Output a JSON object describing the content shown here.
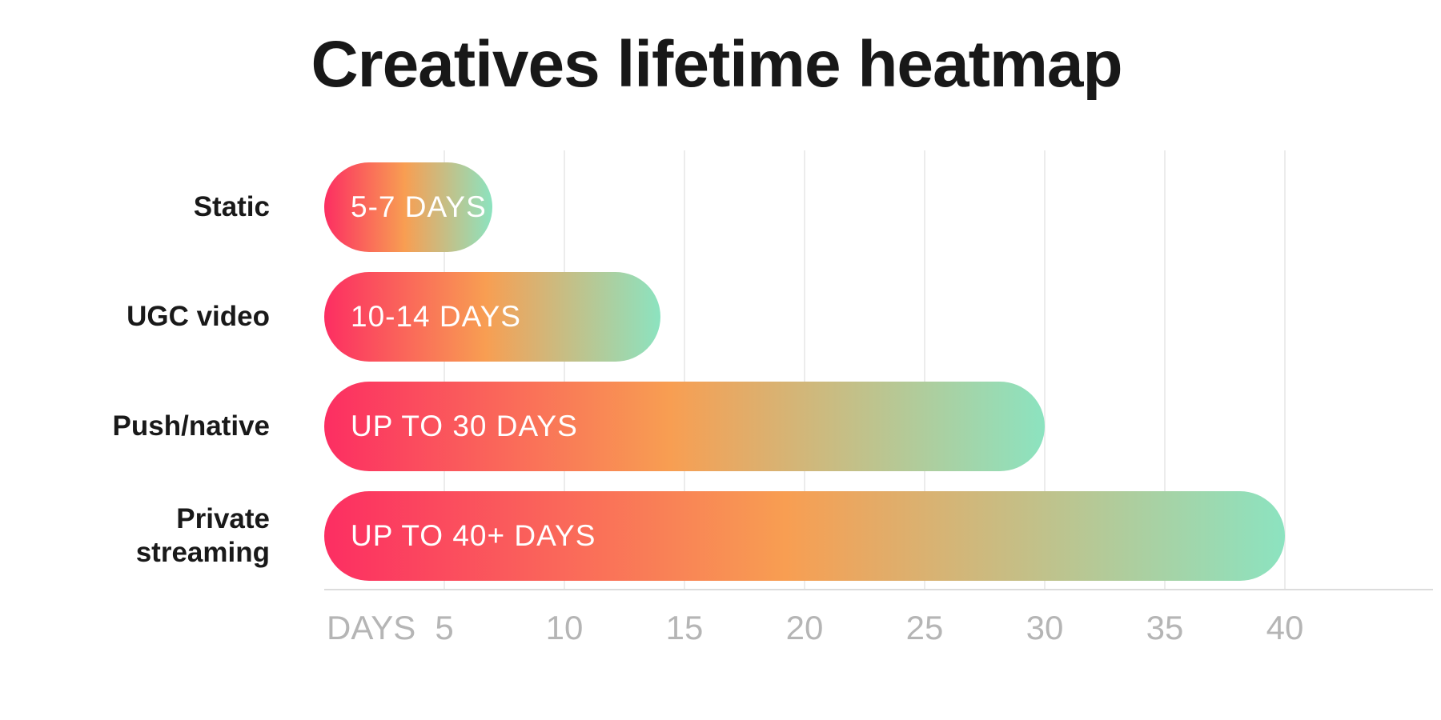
{
  "title": "Creatives lifetime heatmap",
  "chart_data": {
    "type": "bar",
    "orientation": "horizontal",
    "title": "Creatives lifetime heatmap",
    "categories": [
      "Static",
      "UGC video",
      "Push/native",
      "Private streaming"
    ],
    "series": [
      {
        "label": "Static",
        "bar_text": "5-7 DAYS",
        "bar_length_days": 7
      },
      {
        "label": "UGC video",
        "bar_text": "10-14 DAYS",
        "bar_length_days": 14
      },
      {
        "label": "Push/native",
        "bar_text": "UP TO 30 DAYS",
        "bar_length_days": 30
      },
      {
        "label": "Private streaming",
        "bar_text": "UP TO 40+ DAYS",
        "bar_length_days": 40
      }
    ],
    "x_axis": {
      "label": "DAYS",
      "ticks": [
        5,
        10,
        15,
        20,
        25,
        30,
        35,
        40
      ],
      "tick_labels": [
        "5",
        "10",
        "15",
        "20",
        "25",
        "30",
        "35",
        "40"
      ],
      "range": [
        0,
        40
      ],
      "grid": true
    },
    "legend_position": "none",
    "colors": {
      "bar_gradient_start": "#fc2e62",
      "bar_gradient_mid": "#f89e52",
      "bar_gradient_end": "#8ce3c0",
      "gridline": "#ececec",
      "axis_line": "#dcdcdc",
      "axis_text": "#b5b5b5",
      "title_text": "#181818",
      "bar_text": "#ffffff"
    }
  }
}
